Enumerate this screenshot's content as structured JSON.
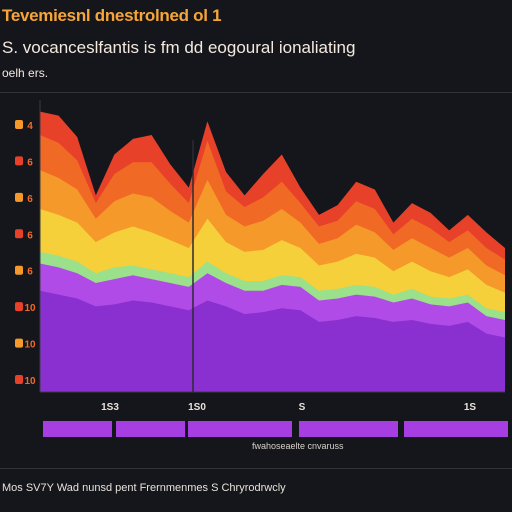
{
  "header": {
    "title": "Tevemiesnl dnestrolned ol  1",
    "subtitle": "S. vocanceslfantis is fm dd eogoural  ionaliating",
    "subtitle2": "oelh ers."
  },
  "footer": {
    "note": "Mos SV7Y Wad nunsd pent Frernmenmes S Chryrodrwcly",
    "legend_caption": "fwahoseaelte cnvaruss"
  },
  "colors": {
    "background": "#15161b",
    "series": [
      "#8a2fd0",
      "#b04be8",
      "#9be08a",
      "#f5d03a",
      "#f59a2a",
      "#f06a26",
      "#e8412a"
    ],
    "strip": "#a73ee2",
    "axis": "#3a3c44"
  },
  "chart_data": {
    "type": "area",
    "stacked": true,
    "title": "Tevemiesnl dnestrolned ol  1",
    "x": [
      0,
      1,
      2,
      3,
      4,
      5,
      6,
      7,
      8,
      9,
      10,
      11,
      12,
      13,
      14,
      15,
      16,
      17,
      18,
      19,
      20,
      21,
      22,
      23,
      24,
      25
    ],
    "x_tick_labels": [
      "1S3",
      "1S0",
      "S",
      "1S"
    ],
    "y_tick_labels": [
      "4",
      "6",
      "6",
      "6",
      "6",
      "10",
      "10",
      "10"
    ],
    "grid": false,
    "series": [
      {
        "values": [
          52,
          50,
          48,
          44,
          45,
          47,
          46,
          44,
          42,
          47,
          44,
          40,
          41,
          43,
          42,
          36,
          37,
          39,
          38,
          36,
          37,
          35,
          34,
          36,
          30,
          28
        ]
      },
      {
        "values": [
          14,
          14,
          13,
          12,
          13,
          13,
          12,
          12,
          12,
          14,
          12,
          12,
          11,
          12,
          12,
          11,
          11,
          11,
          11,
          10,
          11,
          10,
          10,
          10,
          9,
          9
        ]
      },
      {
        "values": [
          6,
          6,
          6,
          5,
          6,
          5,
          5,
          5,
          5,
          6,
          5,
          5,
          5,
          5,
          5,
          5,
          5,
          5,
          5,
          4,
          5,
          4,
          4,
          4,
          4,
          4
        ]
      },
      {
        "values": [
          22,
          21,
          20,
          16,
          18,
          20,
          19,
          17,
          15,
          22,
          16,
          15,
          16,
          18,
          15,
          13,
          14,
          16,
          15,
          12,
          14,
          13,
          11,
          13,
          12,
          10
        ]
      },
      {
        "values": [
          20,
          19,
          17,
          12,
          16,
          17,
          18,
          15,
          13,
          20,
          14,
          13,
          15,
          16,
          13,
          11,
          12,
          15,
          13,
          11,
          12,
          12,
          10,
          11,
          10,
          9
        ]
      },
      {
        "values": [
          18,
          18,
          15,
          8,
          14,
          16,
          18,
          14,
          10,
          20,
          12,
          10,
          12,
          14,
          10,
          9,
          9,
          12,
          12,
          8,
          10,
          10,
          8,
          9,
          9,
          8
        ]
      },
      {
        "values": [
          12,
          14,
          12,
          4,
          10,
          12,
          14,
          10,
          8,
          10,
          10,
          6,
          12,
          14,
          8,
          6,
          8,
          10,
          10,
          6,
          8,
          8,
          6,
          8,
          8,
          6
        ]
      }
    ],
    "ylim": [
      0,
      150
    ],
    "legend_strip": [
      "",
      "",
      "",
      "",
      ""
    ]
  }
}
